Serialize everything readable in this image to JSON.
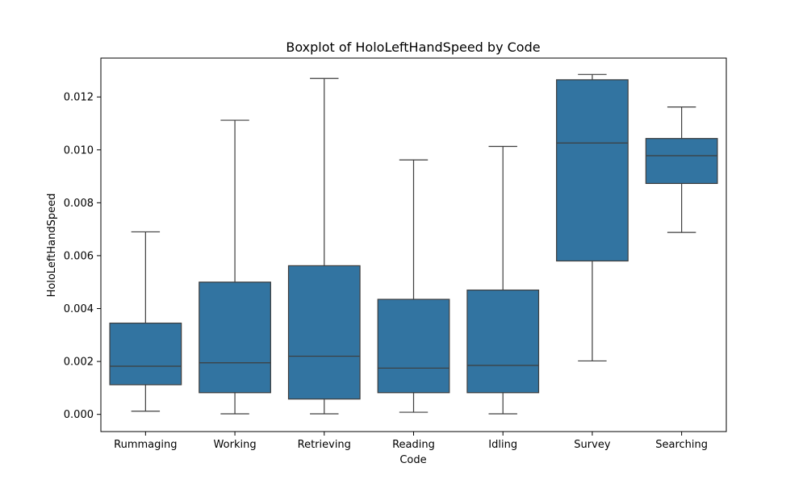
{
  "chart_data": {
    "type": "boxplot",
    "title": "Boxplot of HoloLeftHandSpeed by Code",
    "xlabel": "Code",
    "ylabel": "HoloLeftHandSpeed",
    "ylim": [
      -0.00065,
      0.01347
    ],
    "yticks": [
      0.0,
      0.002,
      0.004,
      0.006,
      0.008,
      0.01,
      0.012
    ],
    "ytick_labels": [
      "0.000",
      "0.002",
      "0.004",
      "0.006",
      "0.008",
      "0.010",
      "0.012"
    ],
    "grid": false,
    "box_color": "#3274a1",
    "line_color": "#3d3d3d",
    "categories": [
      "Rummaging",
      "Working",
      "Retrieving",
      "Reading",
      "Idling",
      "Survey",
      "Searching"
    ],
    "boxes": [
      {
        "category": "Rummaging",
        "whisker_low": 0.00012,
        "q1": 0.00112,
        "median": 0.00182,
        "q3": 0.00345,
        "whisker_high": 0.0069
      },
      {
        "category": "Working",
        "whisker_low": 2e-05,
        "q1": 0.00082,
        "median": 0.00195,
        "q3": 0.005,
        "whisker_high": 0.01112
      },
      {
        "category": "Retrieving",
        "whisker_low": 2e-05,
        "q1": 0.00058,
        "median": 0.0022,
        "q3": 0.00562,
        "whisker_high": 0.0127
      },
      {
        "category": "Reading",
        "whisker_low": 8e-05,
        "q1": 0.00082,
        "median": 0.00175,
        "q3": 0.00435,
        "whisker_high": 0.00962
      },
      {
        "category": "Idling",
        "whisker_low": 2e-05,
        "q1": 0.00082,
        "median": 0.00185,
        "q3": 0.0047,
        "whisker_high": 0.01013
      },
      {
        "category": "Survey",
        "whisker_low": 0.00202,
        "q1": 0.0058,
        "median": 0.01026,
        "q3": 0.01265,
        "whisker_high": 0.01285
      },
      {
        "category": "Searching",
        "whisker_low": 0.00688,
        "q1": 0.00873,
        "median": 0.00978,
        "q3": 0.01043,
        "whisker_high": 0.01162
      }
    ]
  }
}
